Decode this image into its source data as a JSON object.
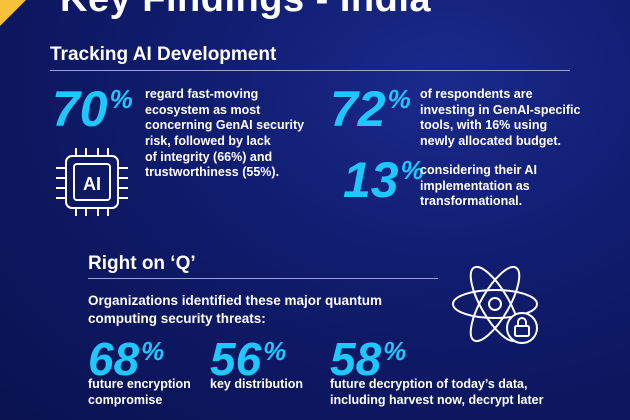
{
  "header": {
    "title": "Key Findings - India"
  },
  "section1": {
    "title": "Tracking AI Development",
    "stats": [
      {
        "value": "70",
        "unit": "%",
        "text": "regard fast-moving\necosystem as most\nconcerning GenAI security\nrisk, followed by lack\nof integrity (66%) and\ntrustworthiness (55%)."
      },
      {
        "value": "72",
        "unit": "%",
        "text": "of respondents are\ninvesting in GenAI-specific\ntools, with 16% using\nnewly allocated budget."
      },
      {
        "value": "13",
        "unit": "%",
        "text": "considering their AI\nimplementation as\ntransformational."
      }
    ],
    "chip_label": "AI"
  },
  "section2": {
    "title": "Right on ‘Q’",
    "intro": "Organizations identified these major quantum\ncomputing security threats:",
    "stats": [
      {
        "value": "68",
        "unit": "%",
        "text": "future encryption\ncompromise"
      },
      {
        "value": "56",
        "unit": "%",
        "text": "key distribution"
      },
      {
        "value": "58",
        "unit": "%",
        "text": "future decryption of today’s data,\nincluding harvest now, decrypt later"
      }
    ]
  },
  "colors": {
    "accent": "#1ec8ff",
    "background": "#101c6e",
    "corner": "#f5c23a"
  },
  "icons": [
    "ai-chip-icon",
    "atom-lock-icon"
  ]
}
